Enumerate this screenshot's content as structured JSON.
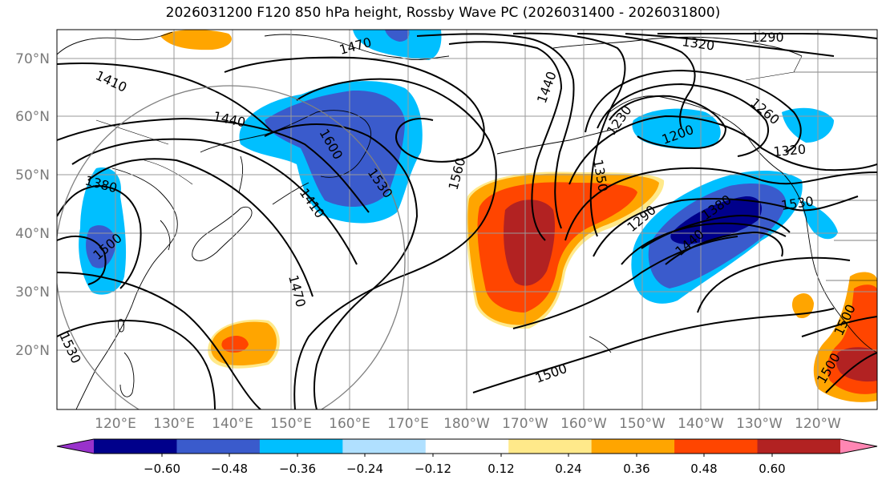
{
  "title": "2026031200 F120 850 hPa height, Rossby Wave PC (2026031400 - 2026031800)",
  "latitude_labels": [
    "70°N",
    "60°N",
    "50°N",
    "40°N",
    "30°N",
    "20°N"
  ],
  "longitude_labels": [
    "120°E",
    "130°E",
    "140°E",
    "150°E",
    "160°E",
    "170°E",
    "180°W",
    "170°W",
    "160°W",
    "150°W",
    "140°W",
    "130°W",
    "120°W"
  ],
  "contour_labels": [
    "1290",
    "1320",
    "1470",
    "1410",
    "1440",
    "1600",
    "1530",
    "1560",
    "1410",
    "1380",
    "1500",
    "1470",
    "1530",
    "1440",
    "1350",
    "1230",
    "1200",
    "1260",
    "1320",
    "1530",
    "1290",
    "1380",
    "1440",
    "1500",
    "1500",
    "1500"
  ],
  "colorbar": {
    "tick_labels": [
      "−0.60",
      "−0.48",
      "−0.36",
      "−0.24",
      "−0.12",
      "0.12",
      "0.24",
      "0.36",
      "0.48",
      "0.60"
    ],
    "colors": [
      "#9932cc",
      "#00008b",
      "#3a5bcc",
      "#00bfff",
      "#b0e0ff",
      "#ffffff",
      "#ffe98a",
      "#ffa500",
      "#ff4500",
      "#b22222",
      "#ff86b3"
    ]
  },
  "palette": {
    "neg_strong": "#00008b",
    "neg_mid": "#3a5bcc",
    "neg_weak": "#00bfff",
    "pos_weak": "#ffa500",
    "pos_mid": "#ff4500",
    "pos_strong": "#b22222"
  }
}
